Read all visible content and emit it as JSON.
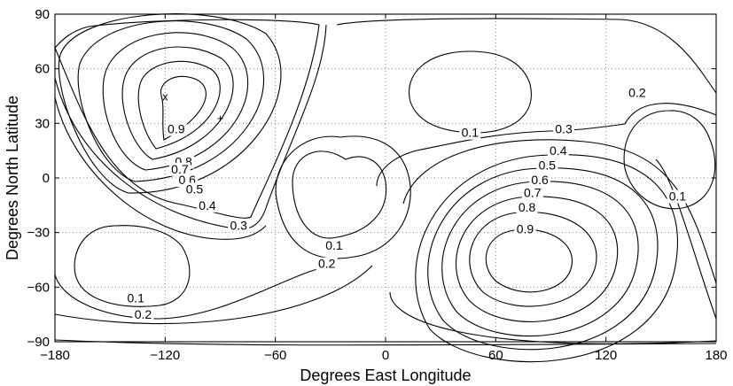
{
  "chart_data": {
    "type": "contour",
    "title": "",
    "xlabel": "Degrees East Longitude",
    "ylabel": "Degrees North Latitude",
    "xlim": [
      -180,
      180
    ],
    "ylim": [
      -90,
      90
    ],
    "xticks": [
      -180,
      -120,
      -60,
      0,
      60,
      120,
      180
    ],
    "yticks": [
      -90,
      -60,
      -30,
      0,
      30,
      60,
      90
    ],
    "grid": true,
    "contour_levels": [
      0.1,
      0.2,
      0.3,
      0.4,
      0.5,
      0.6,
      0.7,
      0.8,
      0.9
    ],
    "contour_labels": [
      {
        "text": "0.9",
        "lon": -114,
        "lat": 26
      },
      {
        "text": "0.8",
        "lon": -110,
        "lat": 8
      },
      {
        "text": "0.7",
        "lon": -112,
        "lat": 4
      },
      {
        "text": "0.6",
        "lon": -108,
        "lat": -2
      },
      {
        "text": "0.5",
        "lon": -104,
        "lat": -7
      },
      {
        "text": "0.4",
        "lon": -97,
        "lat": -16
      },
      {
        "text": "0.3",
        "lon": -80,
        "lat": -27
      },
      {
        "text": "0.1",
        "lon": -28,
        "lat": -38
      },
      {
        "text": "0.2",
        "lon": -32,
        "lat": -48
      },
      {
        "text": "0.1",
        "lon": 46,
        "lat": 24
      },
      {
        "text": "0.3",
        "lon": 97,
        "lat": 26
      },
      {
        "text": "0.4",
        "lon": 94,
        "lat": 14
      },
      {
        "text": "0.5",
        "lon": 88,
        "lat": 6
      },
      {
        "text": "0.6",
        "lon": 84,
        "lat": -2
      },
      {
        "text": "0.7",
        "lon": 80,
        "lat": -9
      },
      {
        "text": "0.8",
        "lon": 77,
        "lat": -17
      },
      {
        "text": "0.9",
        "lon": 76,
        "lat": -29
      },
      {
        "text": "0.2",
        "lon": 137,
        "lat": 46
      },
      {
        "text": "0.1",
        "lon": 159,
        "lat": -11
      },
      {
        "text": "0.1",
        "lon": -136,
        "lat": -67
      },
      {
        "text": "0.2",
        "lon": -132,
        "lat": -76
      }
    ],
    "markers": [
      {
        "symbol": "x",
        "lon": -120,
        "lat": 45
      },
      {
        "symbol": "+",
        "lon": -90,
        "lat": 33
      }
    ]
  }
}
